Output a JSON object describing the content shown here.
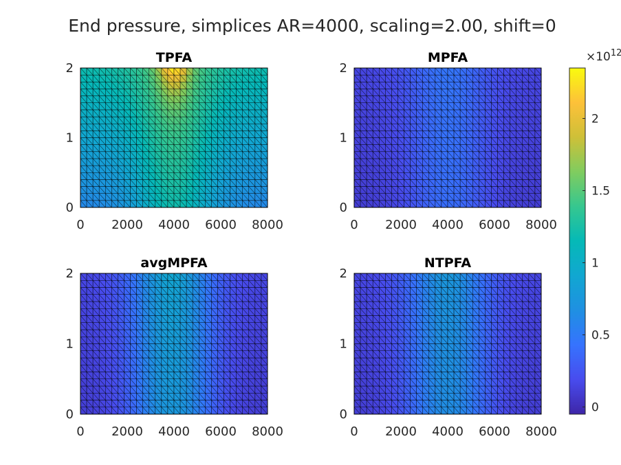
{
  "title": "End pressure, simplices AR=4000, scaling=2.00, shift=0",
  "chart_data": [
    {
      "type": "heatmap",
      "title": "TPFA",
      "x_range": [
        0,
        8000
      ],
      "y_range": [
        0,
        2
      ],
      "x_ticks": [
        "0",
        "2000",
        "4000",
        "6000",
        "8000"
      ],
      "y_ticks": [
        "0",
        "1",
        "2"
      ],
      "grid_nx": 30,
      "grid_ny": 20,
      "field": {
        "peak_x": 4000,
        "peak_value": 2350000000000.0,
        "center_top_value": 1550000000000.0,
        "center_bottom_value": 1200000000000.0,
        "edge_top_value": 1200000000000.0,
        "edge_bottom_value": 600000000000.0
      }
    },
    {
      "type": "heatmap",
      "title": "MPFA",
      "x_range": [
        0,
        8000
      ],
      "y_range": [
        0,
        2
      ],
      "x_ticks": [
        "0",
        "2000",
        "4000",
        "6000",
        "8000"
      ],
      "y_ticks": [
        "0",
        "1",
        "2"
      ],
      "grid_nx": 30,
      "grid_ny": 20,
      "field": {
        "peak_x": 4000,
        "peak_value": 450000000000.0,
        "center_top_value": 450000000000.0,
        "center_bottom_value": 400000000000.0,
        "edge_top_value": 150000000000.0,
        "edge_bottom_value": 100000000000.0
      }
    },
    {
      "type": "heatmap",
      "title": "avgMPFA",
      "x_range": [
        0,
        8000
      ],
      "y_range": [
        0,
        2
      ],
      "x_ticks": [
        "0",
        "2000",
        "4000",
        "6000",
        "8000"
      ],
      "y_ticks": [
        "0",
        "1",
        "2"
      ],
      "grid_nx": 30,
      "grid_ny": 20,
      "field": {
        "peak_x": 3900,
        "peak_value": 900000000000.0,
        "center_top_value": 850000000000.0,
        "center_bottom_value": 750000000000.0,
        "edge_top_value": 150000000000.0,
        "edge_bottom_value": 100000000000.0
      }
    },
    {
      "type": "heatmap",
      "title": "NTPFA",
      "x_range": [
        0,
        8000
      ],
      "y_range": [
        0,
        2
      ],
      "x_ticks": [
        "0",
        "2000",
        "4000",
        "6000",
        "8000"
      ],
      "y_ticks": [
        "0",
        "1",
        "2"
      ],
      "grid_nx": 30,
      "grid_ny": 20,
      "field": {
        "peak_x": 4000,
        "peak_value": 750000000000.0,
        "center_top_value": 700000000000.0,
        "center_bottom_value": 650000000000.0,
        "edge_top_value": 150000000000.0,
        "edge_bottom_value": 100000000000.0
      }
    }
  ],
  "colorbar": {
    "exponent_label": "×10",
    "exponent_value": "12",
    "range": [
      -50000000000.0,
      2350000000000.0
    ],
    "ticks": [
      {
        "value": 0,
        "label": "0"
      },
      {
        "value": 500000000000.0,
        "label": "0.5"
      },
      {
        "value": 1000000000000.0,
        "label": "1"
      },
      {
        "value": 1500000000000.0,
        "label": "1.5"
      },
      {
        "value": 2000000000000.0,
        "label": "2"
      }
    ],
    "colormap": "parula"
  }
}
